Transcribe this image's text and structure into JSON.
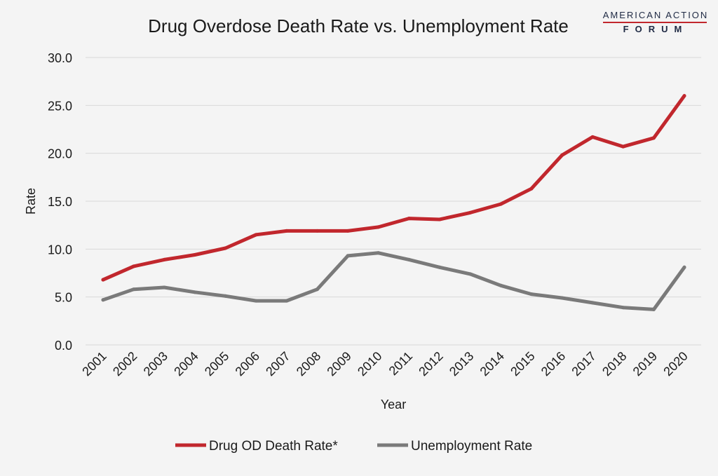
{
  "brand": {
    "line1": "AMERICAN ACTION",
    "line2": "FORUM",
    "accent_color": "#c1272d",
    "text_color": "#1f2a44"
  },
  "chart_data": {
    "type": "line",
    "title": "Drug Overdose Death Rate vs. Unemployment Rate",
    "xlabel": "Year",
    "ylabel": "Rate",
    "ylim": [
      0,
      30
    ],
    "yticks": [
      "0.0",
      "5.0",
      "10.0",
      "15.0",
      "20.0",
      "25.0",
      "30.0"
    ],
    "grid": true,
    "legend_position": "bottom",
    "categories": [
      "2001",
      "2002",
      "2003",
      "2004",
      "2005",
      "2006",
      "2007",
      "2008",
      "2009",
      "2010",
      "2011",
      "2012",
      "2013",
      "2014",
      "2015",
      "2016",
      "2017",
      "2018",
      "2019",
      "2020"
    ],
    "series": [
      {
        "name": "Drug OD Death Rate*",
        "color": "#c1272d",
        "values": [
          6.8,
          8.2,
          8.9,
          9.4,
          10.1,
          11.5,
          11.9,
          11.9,
          11.9,
          12.3,
          13.2,
          13.1,
          13.8,
          14.7,
          16.3,
          19.8,
          21.7,
          20.7,
          21.6,
          26.0
        ]
      },
      {
        "name": "Unemployment Rate",
        "color": "#7a7a7a",
        "values": [
          4.7,
          5.8,
          6.0,
          5.5,
          5.1,
          4.6,
          4.6,
          5.8,
          9.3,
          9.6,
          8.9,
          8.1,
          7.4,
          6.2,
          5.3,
          4.9,
          4.4,
          3.9,
          3.7,
          8.1
        ]
      }
    ]
  }
}
